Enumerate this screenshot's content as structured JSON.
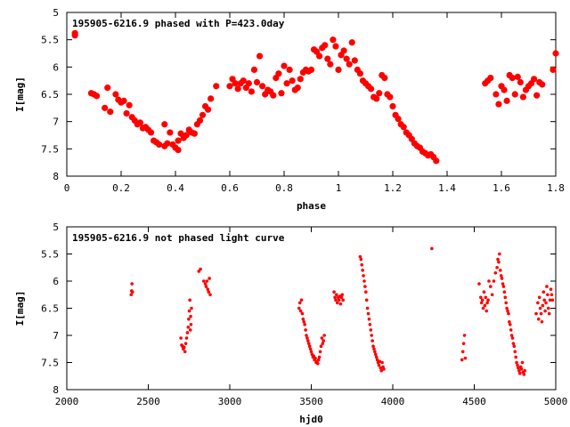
{
  "marker_color": "#ff0000",
  "chart_data": [
    {
      "type": "scatter",
      "title": "195905-6216.9 phased with P=423.0day",
      "xlabel": "phase",
      "ylabel": "I[mag]",
      "xlim": [
        0,
        1.8
      ],
      "ylim": [
        8,
        5
      ],
      "y_inverted": true,
      "x_ticks": [
        "0",
        "0.2",
        "0.4",
        "0.6",
        "0.8",
        "1",
        "1.2",
        "1.4",
        "1.6",
        "1.8"
      ],
      "y_ticks": [
        "5",
        "5.5",
        "6",
        "6.5",
        "7",
        "7.5",
        "8"
      ],
      "grid": false,
      "series": [
        {
          "marker": "filled-circle",
          "x": [
            0.03,
            0.03,
            0.09,
            0.1,
            0.11,
            0.14,
            0.15,
            0.16,
            0.18,
            0.19,
            0.2,
            0.21,
            0.22,
            0.23,
            0.24,
            0.25,
            0.26,
            0.27,
            0.28,
            0.29,
            0.3,
            0.31,
            0.32,
            0.33,
            0.34,
            0.36,
            0.36,
            0.37,
            0.38,
            0.39,
            0.4,
            0.41,
            0.41,
            0.42,
            0.43,
            0.44,
            0.45,
            0.46,
            0.47,
            0.48,
            0.49,
            0.5,
            0.51,
            0.52,
            0.53,
            0.55,
            0.6,
            0.61,
            0.62,
            0.63,
            0.64,
            0.65,
            0.66,
            0.67,
            0.68,
            0.69,
            0.7,
            0.71,
            0.72,
            0.73,
            0.74,
            0.75,
            0.76,
            0.77,
            0.78,
            0.79,
            0.8,
            0.81,
            0.82,
            0.83,
            0.84,
            0.85,
            0.86,
            0.87,
            0.88,
            0.89,
            0.9,
            0.91,
            0.92,
            0.93,
            0.94,
            0.95,
            0.96,
            0.97,
            0.98,
            0.99,
            1.0,
            1.01,
            1.02,
            1.03,
            1.04,
            1.05,
            1.06,
            1.07,
            1.08,
            1.09,
            1.1,
            1.11,
            1.12,
            1.13,
            1.14,
            1.15,
            1.16,
            1.17,
            1.18,
            1.19,
            1.2,
            1.21,
            1.22,
            1.23,
            1.24,
            1.25,
            1.26,
            1.27,
            1.28,
            1.29,
            1.3,
            1.31,
            1.32,
            1.33,
            1.34,
            1.35,
            1.36,
            1.54,
            1.55,
            1.56,
            1.58,
            1.59,
            1.6,
            1.61,
            1.62,
            1.63,
            1.64,
            1.65,
            1.66,
            1.67,
            1.68,
            1.69,
            1.7,
            1.71,
            1.72,
            1.73,
            1.74,
            1.75,
            1.79,
            1.8
          ],
          "y": [
            5.42,
            5.38,
            6.48,
            6.5,
            6.53,
            6.75,
            6.38,
            6.82,
            6.5,
            6.6,
            6.65,
            6.62,
            6.85,
            6.7,
            6.92,
            6.98,
            7.05,
            7.02,
            7.12,
            7.1,
            7.15,
            7.2,
            7.35,
            7.38,
            7.42,
            7.45,
            7.05,
            7.4,
            7.2,
            7.42,
            7.48,
            7.35,
            7.52,
            7.22,
            7.3,
            7.25,
            7.15,
            7.2,
            7.22,
            7.05,
            6.98,
            6.88,
            6.72,
            6.78,
            6.58,
            6.35,
            6.35,
            6.22,
            6.3,
            6.4,
            6.3,
            6.25,
            6.38,
            6.3,
            6.45,
            6.05,
            6.28,
            5.8,
            6.35,
            6.5,
            6.42,
            6.45,
            6.52,
            6.2,
            6.12,
            6.48,
            5.98,
            6.3,
            6.05,
            6.25,
            6.42,
            6.38,
            6.22,
            6.1,
            6.05,
            6.08,
            6.05,
            5.68,
            5.72,
            5.8,
            5.65,
            5.6,
            5.85,
            5.95,
            5.5,
            5.62,
            6.05,
            5.78,
            5.7,
            5.85,
            5.95,
            5.55,
            5.88,
            6.05,
            6.12,
            6.25,
            6.3,
            6.35,
            6.4,
            6.55,
            6.58,
            6.48,
            6.15,
            6.2,
            6.5,
            6.55,
            6.72,
            6.88,
            6.95,
            7.05,
            7.1,
            7.2,
            7.25,
            7.32,
            7.4,
            7.45,
            7.48,
            7.55,
            7.58,
            7.62,
            7.6,
            7.65,
            7.72,
            6.3,
            6.25,
            6.2,
            6.5,
            6.68,
            6.35,
            6.42,
            6.62,
            6.15,
            6.2,
            6.5,
            6.18,
            6.28,
            6.55,
            6.42,
            6.35,
            6.3,
            6.22,
            6.52,
            6.28,
            6.32,
            6.05,
            5.75
          ]
        }
      ]
    },
    {
      "type": "scatter",
      "title": "195905-6216.9 not phased light curve",
      "xlabel": "hjd0",
      "ylabel": "I[mag]",
      "xlim": [
        2000,
        5000
      ],
      "ylim": [
        8,
        5
      ],
      "y_inverted": true,
      "x_ticks": [
        "2000",
        "2500",
        "3000",
        "3500",
        "4000",
        "4500",
        "5000"
      ],
      "y_ticks": [
        "5",
        "5.5",
        "6",
        "6.5",
        "7",
        "7.5",
        "8"
      ],
      "grid": false,
      "series": [
        {
          "marker": "small-filled-circle",
          "x": [
            2395,
            2398,
            2400,
            2403,
            2700,
            2705,
            2710,
            2715,
            2720,
            2725,
            2730,
            2735,
            2740,
            2745,
            2748,
            2752,
            2755,
            2758,
            2760,
            2762,
            2765,
            2810,
            2820,
            2840,
            2850,
            2855,
            2860,
            2865,
            2870,
            2875,
            2880,
            3425,
            3430,
            3435,
            3440,
            3445,
            3450,
            3455,
            3460,
            3465,
            3470,
            3475,
            3480,
            3485,
            3490,
            3495,
            3500,
            3505,
            3510,
            3515,
            3520,
            3525,
            3530,
            3535,
            3540,
            3545,
            3550,
            3555,
            3560,
            3565,
            3570,
            3575,
            3580,
            3640,
            3645,
            3650,
            3655,
            3660,
            3665,
            3670,
            3675,
            3680,
            3685,
            3690,
            3695,
            3800,
            3805,
            3810,
            3815,
            3820,
            3825,
            3830,
            3835,
            3840,
            3845,
            3850,
            3855,
            3860,
            3865,
            3870,
            3875,
            3880,
            3885,
            3890,
            3895,
            3900,
            3905,
            3910,
            3915,
            3920,
            3925,
            3930,
            3935,
            3940,
            3945,
            4240,
            4425,
            4430,
            4435,
            4440,
            4445,
            4530,
            4540,
            4545,
            4550,
            4555,
            4560,
            4565,
            4570,
            4575,
            4580,
            4585,
            4590,
            4600,
            4610,
            4620,
            4630,
            4640,
            4645,
            4650,
            4655,
            4660,
            4665,
            4670,
            4675,
            4680,
            4685,
            4690,
            4695,
            4700,
            4705,
            4710,
            4715,
            4720,
            4725,
            4730,
            4735,
            4740,
            4745,
            4750,
            4755,
            4760,
            4765,
            4770,
            4775,
            4780,
            4785,
            4790,
            4795,
            4800,
            4805,
            4810,
            4880,
            4890,
            4895,
            4900,
            4905,
            4910,
            4915,
            4920,
            4925,
            4930,
            4935,
            4940,
            4945,
            4950,
            4955,
            4960,
            4965,
            4970,
            4975,
            4980
          ],
          "y": [
            6.25,
            6.18,
            6.05,
            6.2,
            7.05,
            7.18,
            7.2,
            7.25,
            7.22,
            7.3,
            7.15,
            7.05,
            6.95,
            6.85,
            6.7,
            6.55,
            6.35,
            6.9,
            6.65,
            6.8,
            6.5,
            5.82,
            5.78,
            6.0,
            6.05,
            6.1,
            6.0,
            6.15,
            6.2,
            5.95,
            6.25,
            6.5,
            6.4,
            6.55,
            6.35,
            6.6,
            6.7,
            6.75,
            6.8,
            6.9,
            7.0,
            7.05,
            7.1,
            7.15,
            7.2,
            7.25,
            7.3,
            7.35,
            7.4,
            7.38,
            7.45,
            7.42,
            7.5,
            7.48,
            7.52,
            7.45,
            7.4,
            7.3,
            7.2,
            7.05,
            7.15,
            7.1,
            7.0,
            6.2,
            6.3,
            6.35,
            6.25,
            6.4,
            6.3,
            6.35,
            6.28,
            6.42,
            6.3,
            6.25,
            6.35,
            5.55,
            5.6,
            5.7,
            5.8,
            5.9,
            6.0,
            6.1,
            6.2,
            6.35,
            6.5,
            6.6,
            6.7,
            6.8,
            6.9,
            7.0,
            7.1,
            7.2,
            7.25,
            7.3,
            7.35,
            7.4,
            7.45,
            7.5,
            7.55,
            7.48,
            7.6,
            7.65,
            7.5,
            7.58,
            7.62,
            5.4,
            7.45,
            7.3,
            7.15,
            7.0,
            7.42,
            6.05,
            6.3,
            6.4,
            6.35,
            6.5,
            6.2,
            6.45,
            6.3,
            6.55,
            6.4,
            6.35,
            6.0,
            6.1,
            6.25,
            6.0,
            5.85,
            5.75,
            5.6,
            5.65,
            5.5,
            5.8,
            5.9,
            5.95,
            6.05,
            6.1,
            6.2,
            6.3,
            6.4,
            6.5,
            6.55,
            6.6,
            6.75,
            6.8,
            6.9,
            7.0,
            7.05,
            7.15,
            7.2,
            7.3,
            7.4,
            7.5,
            7.55,
            7.6,
            7.65,
            7.7,
            7.58,
            7.62,
            7.5,
            7.68,
            7.72,
            7.65,
            6.6,
            6.4,
            6.7,
            6.3,
            6.5,
            6.6,
            6.75,
            6.45,
            6.2,
            6.35,
            6.55,
            6.4,
            6.1,
            6.25,
            6.5,
            6.6,
            6.35,
            6.15,
            6.25,
            6.35
          ]
        }
      ]
    }
  ]
}
